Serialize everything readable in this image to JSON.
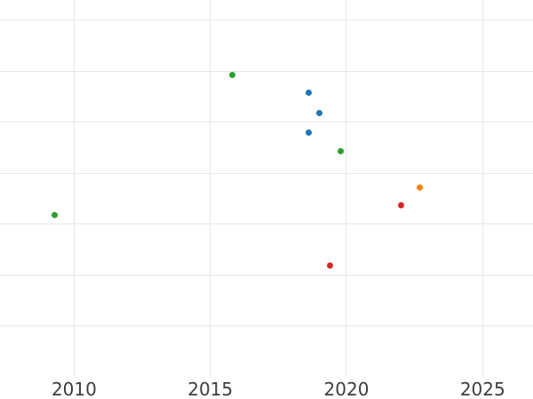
{
  "chart_data": {
    "type": "scatter",
    "title": "",
    "xlabel": "",
    "ylabel": "",
    "x_ticks": [
      {
        "value": 2010,
        "label": "2010"
      },
      {
        "value": 2015,
        "label": "2015"
      },
      {
        "value": 2020,
        "label": "2020"
      },
      {
        "value": 2025,
        "label": "2025"
      }
    ],
    "xlim": [
      2007.28,
      2026.85
    ],
    "ylim": [
      0,
      7.39
    ],
    "y_axis_labels_visible": false,
    "y_gridline_units": [
      1,
      2,
      3,
      4,
      5,
      6,
      7
    ],
    "grid": true,
    "legend_visible": false,
    "marker_diameter_px": 7,
    "series": [
      {
        "name": "series-blue",
        "color": "#1f77b4",
        "points": [
          {
            "x": 2018.6,
            "y": 5.58
          },
          {
            "x": 2019.0,
            "y": 5.18
          },
          {
            "x": 2018.6,
            "y": 4.79
          }
        ]
      },
      {
        "name": "series-orange",
        "color": "#ff7f0e",
        "points": [
          {
            "x": 2022.7,
            "y": 3.72
          }
        ]
      },
      {
        "name": "series-green",
        "color": "#2ca02c",
        "points": [
          {
            "x": 2015.8,
            "y": 5.92
          },
          {
            "x": 2019.8,
            "y": 4.42
          },
          {
            "x": 2009.3,
            "y": 3.17
          }
        ]
      },
      {
        "name": "series-red",
        "color": "#d62728",
        "points": [
          {
            "x": 2022.0,
            "y": 3.37
          },
          {
            "x": 2019.4,
            "y": 2.19
          }
        ]
      }
    ],
    "colors": {
      "background": "#ffffff",
      "gridline": "#e7e7e7",
      "tick_label": "#3d3d3d"
    }
  }
}
